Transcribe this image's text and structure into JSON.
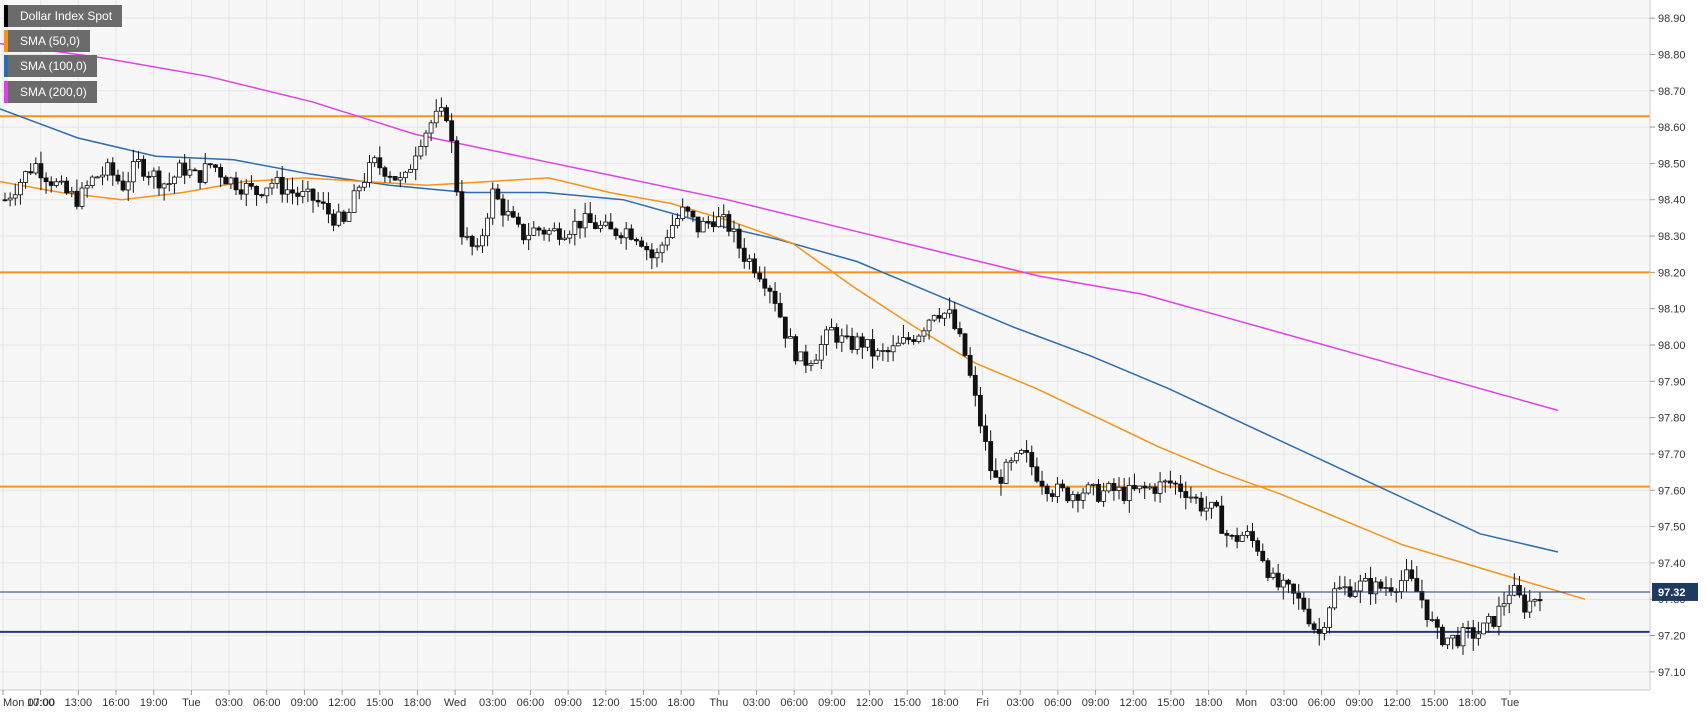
{
  "chart_data": {
    "type": "candlestick",
    "instrument": "Dollar Index Spot",
    "legend": [
      {
        "label": "Dollar Index Spot",
        "color": "#000000"
      },
      {
        "label": "SMA (50,0)",
        "color": "#f7931a"
      },
      {
        "label": "SMA (100,0)",
        "color": "#2b6cb0"
      },
      {
        "label": "SMA (200,0)",
        "color": "#e040e8"
      }
    ],
    "y_ticks": [
      "98.90",
      "98.80",
      "98.70",
      "98.60",
      "98.50",
      "98.40",
      "98.30",
      "98.20",
      "98.10",
      "98.00",
      "97.90",
      "97.80",
      "97.70",
      "97.60",
      "97.50",
      "97.40",
      "97.30",
      "97.20",
      "97.10"
    ],
    "ylim": [
      97.05,
      98.95
    ],
    "x_ticks": [
      "Mon 07:00",
      "10:00",
      "13:00",
      "16:00",
      "19:00",
      "Tue",
      "03:00",
      "06:00",
      "09:00",
      "12:00",
      "15:00",
      "18:00",
      "Wed",
      "03:00",
      "06:00",
      "09:00",
      "12:00",
      "15:00",
      "18:00",
      "Thu",
      "03:00",
      "06:00",
      "09:00",
      "12:00",
      "15:00",
      "18:00",
      "Fri",
      "03:00",
      "06:00",
      "09:00",
      "12:00",
      "15:00",
      "18:00",
      "Mon",
      "03:00",
      "06:00",
      "09:00",
      "12:00",
      "15:00",
      "18:00",
      "Tue"
    ],
    "hlines": [
      {
        "value": 98.63,
        "color": "#f7931a"
      },
      {
        "value": 98.2,
        "color": "#f7931a"
      },
      {
        "value": 97.61,
        "color": "#f7931a"
      },
      {
        "value": 97.21,
        "color": "#1f3a7a"
      }
    ],
    "last_price": {
      "label": "97.32",
      "value": 97.32
    },
    "price_path": [
      98.4,
      98.45,
      98.5,
      98.46,
      98.42,
      98.4,
      98.46,
      98.48,
      98.44,
      98.5,
      98.47,
      98.44,
      98.49,
      98.46,
      98.5,
      98.46,
      98.44,
      98.42,
      98.45,
      98.43,
      98.41,
      98.4,
      98.36,
      98.33,
      98.44,
      98.5,
      98.48,
      98.44,
      98.56,
      98.62,
      98.64,
      98.3,
      98.25,
      98.42,
      98.36,
      98.3,
      98.32,
      98.31,
      98.32,
      98.34,
      98.33,
      98.31,
      98.32,
      98.3,
      98.23,
      98.32,
      98.37,
      98.32,
      98.35,
      98.33,
      98.25,
      98.21,
      98.15,
      98.02,
      97.95,
      97.98,
      98.04,
      98.0,
      98.01,
      97.97,
      97.98,
      98.01,
      98.04,
      98.1,
      98.08,
      97.98,
      97.8,
      97.62,
      97.66,
      97.7,
      97.64,
      97.6,
      97.59,
      97.6,
      97.59,
      97.6,
      97.59,
      97.6,
      97.61,
      97.62,
      97.6,
      97.56,
      97.54,
      97.46,
      97.48,
      97.44,
      97.34,
      97.32,
      97.28,
      97.2,
      97.32,
      97.33,
      97.34,
      97.33,
      97.34,
      97.36,
      97.3,
      97.2,
      97.19,
      97.2,
      97.21,
      97.25,
      97.33,
      97.28,
      97.32
    ],
    "sma50": [
      98.45,
      98.42,
      98.4,
      98.42,
      98.45,
      98.46,
      98.45,
      98.44,
      98.45,
      98.46,
      98.42,
      98.39,
      98.34,
      98.28,
      98.16,
      98.05,
      97.95,
      97.88,
      97.8,
      97.72,
      97.65,
      97.59,
      97.52,
      97.45,
      97.4,
      97.35,
      97.3
    ],
    "sma100": [
      98.65,
      98.57,
      98.52,
      98.51,
      98.47,
      98.44,
      98.42,
      98.42,
      98.4,
      98.34,
      98.29,
      98.23,
      98.14,
      98.05,
      97.97,
      97.88,
      97.78,
      97.68,
      97.58,
      97.48,
      97.43
    ],
    "sma200": [
      98.83,
      98.79,
      98.74,
      98.67,
      98.58,
      98.52,
      98.46,
      98.4,
      98.33,
      98.26,
      98.19,
      98.14,
      98.06,
      97.98,
      97.9,
      97.82
    ]
  }
}
